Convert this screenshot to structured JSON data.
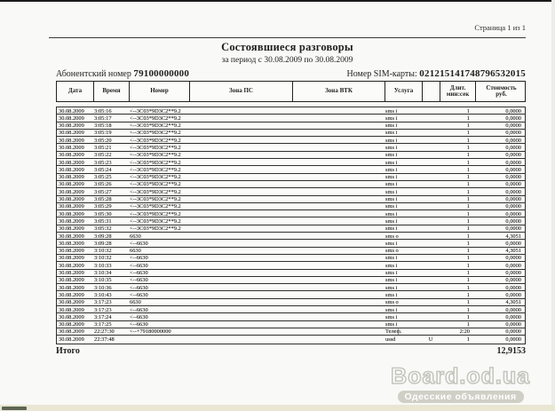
{
  "page": {
    "page_label": "Страница 1 из 1",
    "title": "Состоявшиеся разговоры",
    "subtitle": "за период с 30.08.2009 по 30.08.2009",
    "subscriber_label": "Абонентский номер",
    "subscriber_number": "79100000000",
    "sim_label": "Номер SIM-карты:",
    "sim_number": "021215141748796532015"
  },
  "table": {
    "headers": [
      "Дата",
      "Время",
      "Номер",
      "Зона ПС",
      "Зона ВТК",
      "Услуга",
      "",
      "Длит.\nмин:сек",
      "Стоимость\nруб."
    ],
    "rows": [
      [
        "30.08.2009",
        "3:05:16",
        "<--3C03*9D3C2**9.2",
        "",
        "",
        "sms i",
        "",
        "1",
        "0,0000"
      ],
      [
        "30.08.2009",
        "3:05:17",
        "<--3C03*9D3C2**9.2",
        "",
        "",
        "sms i",
        "",
        "1",
        "0,0000"
      ],
      [
        "30.08.2009",
        "3:05:18",
        "<--3C03*9D3C2**9.2",
        "",
        "",
        "sms i",
        "",
        "1",
        "0,0000"
      ],
      [
        "30.08.2009",
        "3:05:19",
        "<--3C03*9D3C2**9.2",
        "",
        "",
        "sms i",
        "",
        "1",
        "0,0000"
      ],
      [
        "30.08.2009",
        "3:05:20",
        "<--3C03*9D3C2**9.2",
        "",
        "",
        "sms i",
        "",
        "1",
        "0,0000"
      ],
      [
        "30.08.2009",
        "3:05:21",
        "<--3C03*9D3C2**9.2",
        "",
        "",
        "sms i",
        "",
        "1",
        "0,0000"
      ],
      [
        "30.08.2009",
        "3:05:22",
        "<--3C03*9D3C2**9.2",
        "",
        "",
        "sms i",
        "",
        "1",
        "0,0000"
      ],
      [
        "30.08.2009",
        "3:05:23",
        "<--3C03*9D3C2**9.2",
        "",
        "",
        "sms i",
        "",
        "1",
        "0,0000"
      ],
      [
        "30.08.2009",
        "3:05:24",
        "<--3C03*9D3C2**9.2",
        "",
        "",
        "sms i",
        "",
        "1",
        "0,0000"
      ],
      [
        "30.08.2009",
        "3:05:25",
        "<--3C03*9D3C2**9.2",
        "",
        "",
        "sms i",
        "",
        "1",
        "0,0000"
      ],
      [
        "30.08.2009",
        "3:05:26",
        "<--3C03*9D3C2**9.2",
        "",
        "",
        "sms i",
        "",
        "1",
        "0,0000"
      ],
      [
        "30.08.2009",
        "3:05:27",
        "<--3C03*9D3C2**9.2",
        "",
        "",
        "sms i",
        "",
        "1",
        "0,0000"
      ],
      [
        "30.08.2009",
        "3:05:28",
        "<--3C03*9D3C2**9.2",
        "",
        "",
        "sms i",
        "",
        "1",
        "0,0000"
      ],
      [
        "30.08.2009",
        "3:05:29",
        "<--3C03*9D3C2**9.2",
        "",
        "",
        "sms i",
        "",
        "1",
        "0,0000"
      ],
      [
        "30.08.2009",
        "3:05:30",
        "<--3C03*9D3C2**9.2",
        "",
        "",
        "sms i",
        "",
        "1",
        "0,0000"
      ],
      [
        "30.08.2009",
        "3:05:31",
        "<--3C03*9D3C2**9.2",
        "",
        "",
        "sms i",
        "",
        "1",
        "0,0000"
      ],
      [
        "30.08.2009",
        "3:05:32",
        "<--3C03*9D3C2**9.2",
        "",
        "",
        "sms i",
        "",
        "1",
        "0,0000"
      ],
      [
        "30.08.2009",
        "3:09:28",
        "6630",
        "",
        "",
        "sms o",
        "",
        "1",
        "4,3051"
      ],
      [
        "30.08.2009",
        "3:09:28",
        "<--6630",
        "",
        "",
        "sms i",
        "",
        "1",
        "0,0000"
      ],
      [
        "30.08.2009",
        "3:10:32",
        "6630",
        "",
        "",
        "sms o",
        "",
        "1",
        "4,3051"
      ],
      [
        "30.08.2009",
        "3:10:32",
        "<--6630",
        "",
        "",
        "sms i",
        "",
        "1",
        "0,0000"
      ],
      [
        "30.08.2009",
        "3:10:33",
        "<--6630",
        "",
        "",
        "sms i",
        "",
        "1",
        "0,0000"
      ],
      [
        "30.08.2009",
        "3:10:34",
        "<--6630",
        "",
        "",
        "sms i",
        "",
        "1",
        "0,0000"
      ],
      [
        "30.08.2009",
        "3:10:35",
        "<--6630",
        "",
        "",
        "sms i",
        "",
        "1",
        "0,0000"
      ],
      [
        "30.08.2009",
        "3:10:36",
        "<--6630",
        "",
        "",
        "sms i",
        "",
        "1",
        "0,0000"
      ],
      [
        "30.08.2009",
        "3:10:43",
        "<--6630",
        "",
        "",
        "sms i",
        "",
        "1",
        "0,0000"
      ],
      [
        "30.08.2009",
        "3:17:23",
        "6630",
        "",
        "",
        "sms o",
        "",
        "1",
        "4,3051"
      ],
      [
        "30.08.2009",
        "3:17:23",
        "<--6630",
        "",
        "",
        "sms i",
        "",
        "1",
        "0,0000"
      ],
      [
        "30.08.2009",
        "3:17:24",
        "<--6630",
        "",
        "",
        "sms i",
        "",
        "1",
        "0,0000"
      ],
      [
        "30.08.2009",
        "3:17:25",
        "<--6630",
        "",
        "",
        "sms i",
        "",
        "1",
        "0,0000"
      ],
      [
        "30.08.2009",
        "22:27:30",
        "<--+79180000000",
        "",
        "",
        "Телеф.",
        "",
        "2:20",
        "0,0000"
      ],
      [
        "30.08.2009",
        "22:37:48",
        "",
        "",
        "",
        "ussd",
        "U",
        "1",
        "0,0000"
      ]
    ]
  },
  "totals": {
    "label": "Итого",
    "value": "12,9153"
  },
  "watermark": {
    "brand": "Board.od.ua",
    "tagline": "Одесские объявления"
  },
  "colors": {
    "page_background": "#f9f9f7",
    "ink": "#1f1f1f",
    "table_border": "#2e2e2e",
    "bottom_strip": "#e9e6d3",
    "watermark_outline": "#c6c6be",
    "tagline_badge": "#cfcfc6"
  }
}
